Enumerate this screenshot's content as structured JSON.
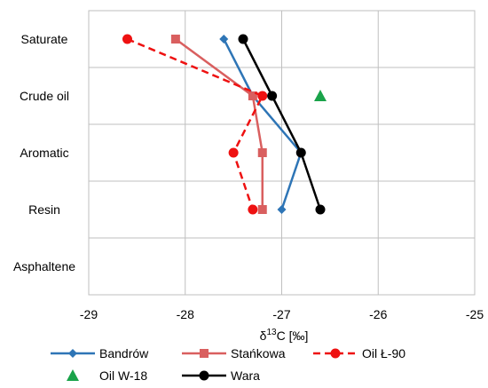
{
  "chart_data": {
    "type": "line",
    "xlabel_main": "δ",
    "xlabel_sup": "13",
    "xlabel_rest": "C [‰]",
    "xlim": [
      -29,
      -25
    ],
    "x_ticks": [
      "-29",
      "-28",
      "-27",
      "-26",
      "-25"
    ],
    "x_tick_values": [
      -29,
      -28,
      -27,
      -26,
      -25
    ],
    "categories": [
      "Saturate",
      "Crude oil",
      "Aromatic",
      "Resin",
      "Asphaltene"
    ],
    "grid": true,
    "legend_position": "bottom",
    "series": [
      {
        "name": "Bandrów",
        "color": "#2e75b6",
        "marker": "diamond",
        "dash": false,
        "line": true,
        "values": [
          -27.6,
          -27.3,
          -26.8,
          -27.0,
          null
        ]
      },
      {
        "name": "Stańkowa",
        "color": "#d95f5f",
        "marker": "square",
        "dash": false,
        "line": true,
        "values": [
          -28.1,
          -27.3,
          -27.2,
          -27.2,
          null
        ]
      },
      {
        "name": "Oil Ł-90",
        "color": "#ee1111",
        "marker": "circle",
        "dash": true,
        "line": true,
        "values": [
          -28.6,
          -27.2,
          -27.5,
          -27.3,
          null
        ]
      },
      {
        "name": "Oil W-18",
        "color": "#1aa34a",
        "marker": "triangle",
        "dash": false,
        "line": false,
        "values": [
          null,
          -26.6,
          null,
          null,
          null
        ]
      },
      {
        "name": "Wara",
        "color": "#000000",
        "marker": "circle",
        "dash": false,
        "line": true,
        "values": [
          -27.4,
          -27.1,
          -26.8,
          -26.6,
          null
        ]
      }
    ]
  }
}
